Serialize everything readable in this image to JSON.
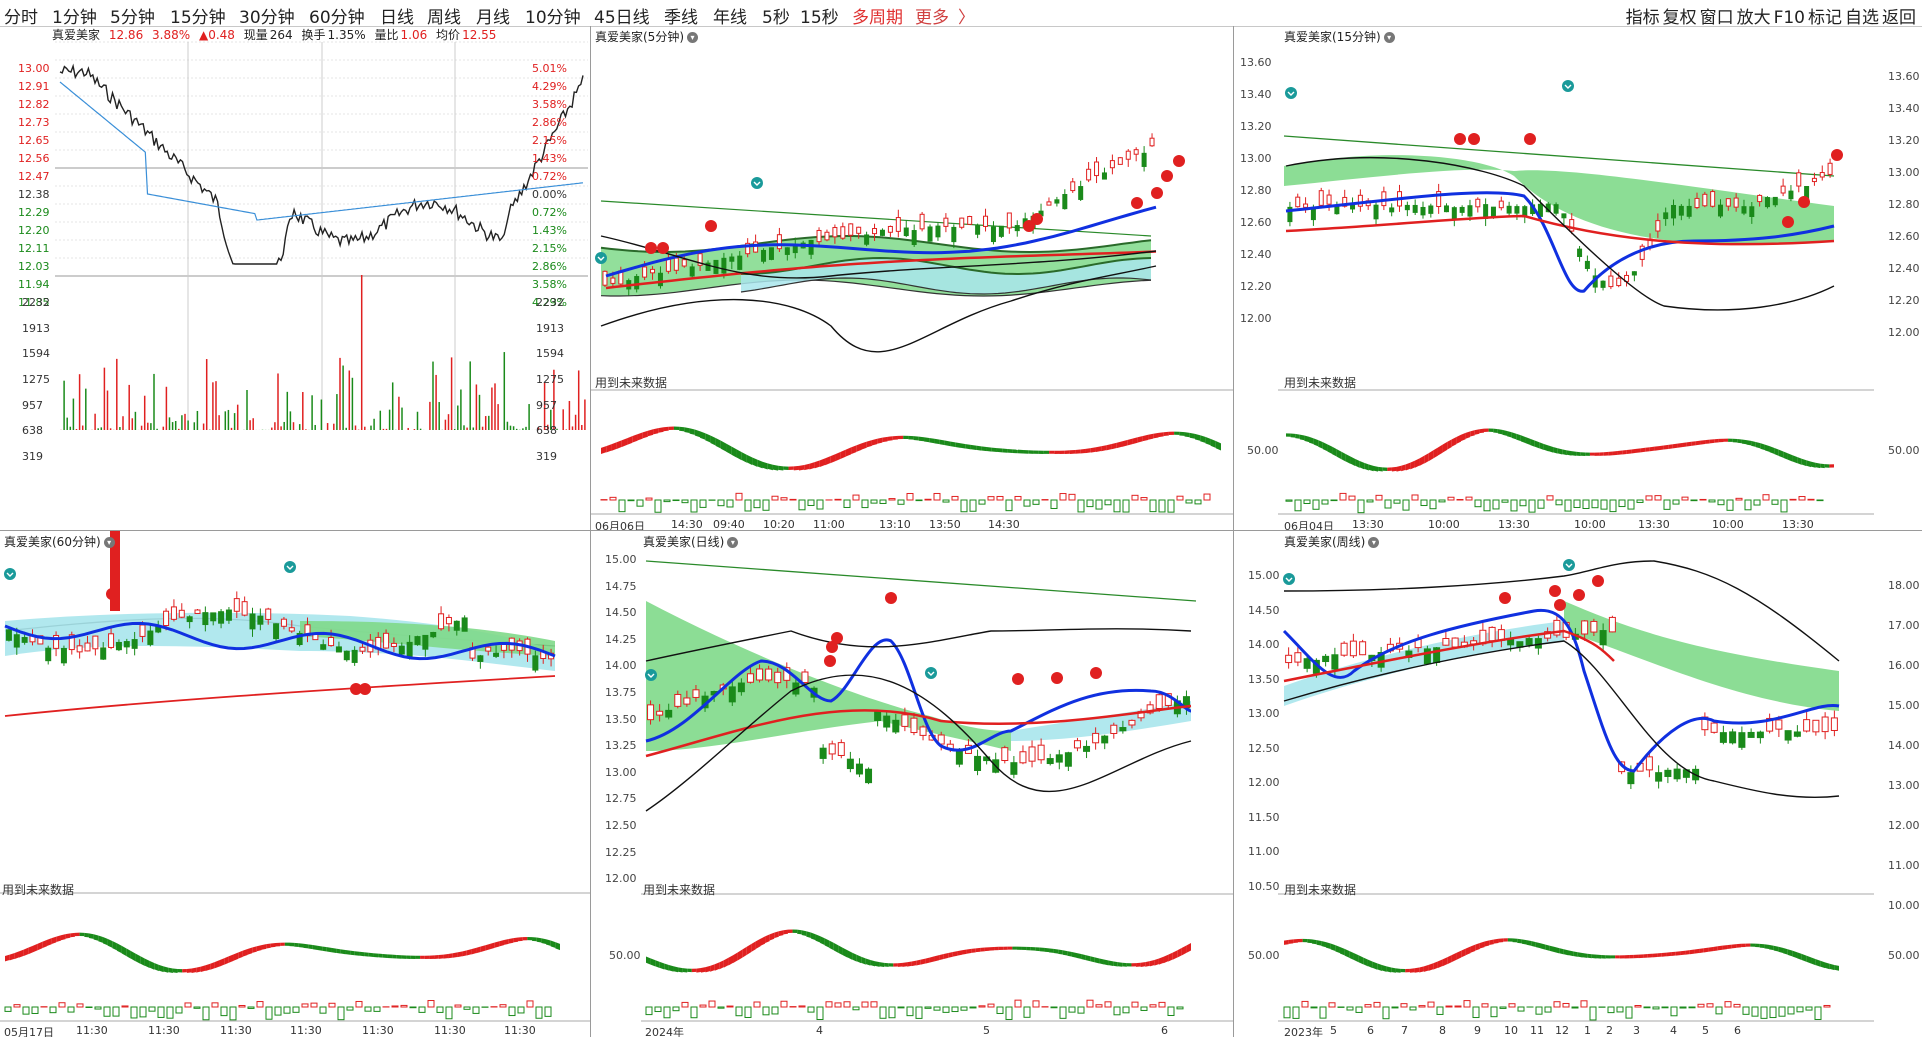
{
  "toolbar": {
    "periods": [
      "分时",
      "1分钟",
      "5分钟",
      "15分钟",
      "30分钟",
      "60分钟",
      "日线",
      "周线",
      "月线",
      "10分钟",
      "45日线",
      "季线",
      "年线",
      "5秒",
      "15秒"
    ],
    "multi_period": "多周期",
    "more": "更多",
    "more_chevron": "〉",
    "right_items": [
      "指标",
      "复权",
      "窗口",
      "放大",
      "F10",
      "标记",
      "自选",
      "返回"
    ]
  },
  "intraday": {
    "price_axis": [
      "13.00",
      "12.91",
      "12.82",
      "12.73",
      "12.65",
      "12.56",
      "12.47",
      "12.38",
      "12.29",
      "12.20",
      "12.11",
      "12.03",
      "11.94",
      "11.85"
    ],
    "pct_axis": [
      "5.01%",
      "4.29%",
      "3.58%",
      "2.86%",
      "2.15%",
      "1.43%",
      "0.72%",
      "0.00%",
      "0.72%",
      "1.43%",
      "2.15%",
      "2.86%",
      "3.58%",
      "4.29%"
    ],
    "vol_axis": [
      "2232",
      "1913",
      "1594",
      "1275",
      "957",
      "638",
      "319"
    ],
    "info": {
      "name": "真爱美家",
      "price": "12.86",
      "pct": "3.88%",
      "change": "▲0.48",
      "now_vol_label": "现量",
      "now_vol": "264",
      "turnover_label": "换手",
      "turnover": "1.35%",
      "ratio_label": "量比",
      "ratio": "1.06",
      "avg_label": "均价",
      "avg": "12.55"
    }
  },
  "panels": {
    "m5": {
      "title": "真爱美家(5分钟)",
      "future": "用到未来数据",
      "xlabels": [
        "06月06日",
        "14:30",
        "09:40",
        "10:20",
        "11:00",
        "13:10",
        "13:50",
        "14:30"
      ]
    },
    "m15": {
      "title": "真爱美家(15分钟)",
      "future": "用到未来数据",
      "axis": [
        "13.60",
        "13.40",
        "13.20",
        "13.00",
        "12.80",
        "12.60",
        "12.40",
        "12.20",
        "12.00"
      ],
      "sub_axis": "50.00",
      "xlabels": [
        "06月04日",
        "13:30",
        "10:00",
        "13:30",
        "10:00",
        "13:30",
        "10:00",
        "13:30"
      ]
    },
    "m60": {
      "title": "真爱美家(60分钟)",
      "future": "用到未来数据",
      "xlabels": [
        "05月17日",
        "11:30",
        "11:30",
        "11:30",
        "11:30",
        "11:30",
        "11:30",
        "11:30"
      ]
    },
    "day": {
      "title": "真爱美家(日线)",
      "future": "用到未来数据",
      "axis": [
        "15.00",
        "14.75",
        "14.50",
        "14.25",
        "14.00",
        "13.75",
        "13.50",
        "13.25",
        "13.00",
        "12.75",
        "12.50",
        "12.25",
        "12.00"
      ],
      "sub_axis": "50.00",
      "xlabels": [
        "2024年",
        "4",
        "5",
        "6"
      ]
    },
    "week": {
      "title": "真爱美家(周线)",
      "future": "用到未来数据",
      "axis": [
        "15.00",
        "14.50",
        "14.00",
        "13.50",
        "13.00",
        "12.50",
        "12.00",
        "11.50",
        "11.00",
        "10.50"
      ],
      "right_axis": [
        "18.00",
        "17.00",
        "16.00",
        "15.00",
        "14.00",
        "13.00",
        "12.00",
        "11.00",
        "10.00"
      ],
      "sub_axis": "50.00",
      "xlabels": [
        "2023年",
        "5",
        "6",
        "7",
        "8",
        "9",
        "10",
        "11",
        "12",
        "1",
        "2",
        "3",
        "4",
        "5",
        "6"
      ]
    }
  },
  "colors": {
    "up": "#e02020",
    "down": "#1a8a1a",
    "ma_blue": "#1030e0",
    "band_green": "#7fd98a",
    "band_cyan": "#a9e6ec"
  }
}
